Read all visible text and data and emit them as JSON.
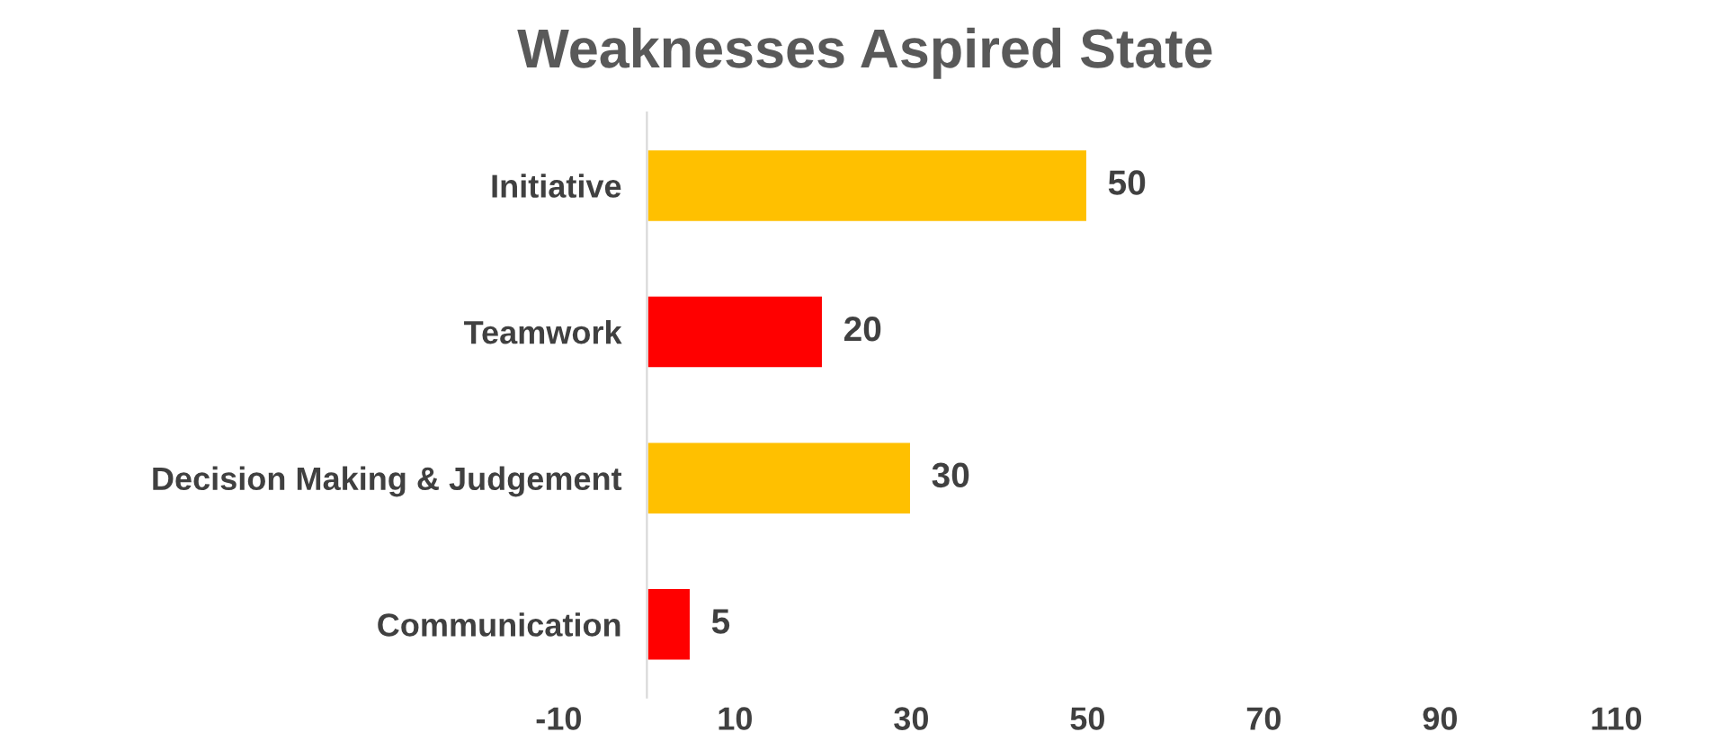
{
  "chart_data": {
    "type": "bar",
    "orientation": "horizontal",
    "title": "Weaknesses Aspired State",
    "categories": [
      "Initiative",
      "Teamwork",
      "Decision Making & Judgement",
      "Communication"
    ],
    "values": [
      50,
      20,
      30,
      5
    ],
    "colors": [
      "#ffc000",
      "#ff0000",
      "#ffc000",
      "#ff0000"
    ],
    "xlim": [
      -10,
      110
    ],
    "xticks": [
      -10,
      10,
      30,
      50,
      70,
      90,
      110
    ],
    "data_labels": true,
    "grid": false
  }
}
